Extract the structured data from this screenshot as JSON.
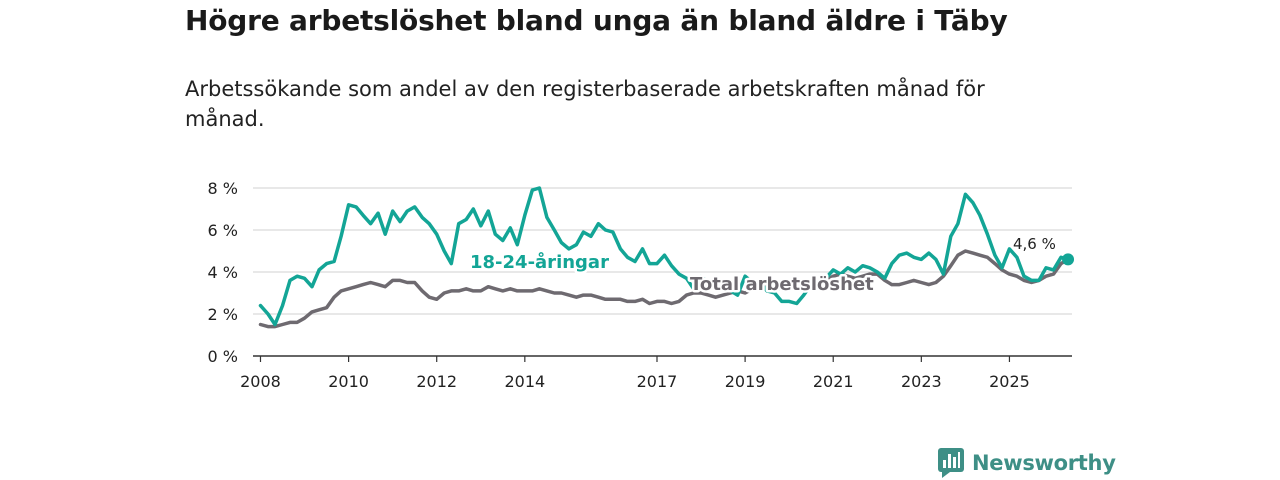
{
  "title": "Högre arbetslöshet bland unga än bland äldre i Täby",
  "subtitle": "Arbetssökande som andel av den registerbaserade arbetskraften månad för månad.",
  "brand": {
    "name": "Newsworthy",
    "icon": "newsworthy-logo-icon"
  },
  "colors": {
    "youth": "#13a596",
    "total": "#6e6a70",
    "grid": "#d9d9d9",
    "axis": "#333333"
  },
  "chart_data": {
    "type": "line",
    "title": "Högre arbetslöshet bland unga än bland äldre i Täby",
    "xlabel": "",
    "ylabel": "",
    "ylim": [
      0,
      8
    ],
    "xlim": [
      2007.83,
      2026.42
    ],
    "y_ticks": [
      {
        "value": 0,
        "label": "0 %"
      },
      {
        "value": 2,
        "label": "2 %"
      },
      {
        "value": 4,
        "label": "4 %"
      },
      {
        "value": 6,
        "label": "6 %"
      },
      {
        "value": 8,
        "label": "8 %"
      }
    ],
    "x_ticks": [
      {
        "value": 2008,
        "label": "2008"
      },
      {
        "value": 2010,
        "label": "2010"
      },
      {
        "value": 2012,
        "label": "2012"
      },
      {
        "value": 2014,
        "label": "2014"
      },
      {
        "value": 2017,
        "label": "2017"
      },
      {
        "value": 2019,
        "label": "2019"
      },
      {
        "value": 2021,
        "label": "2021"
      },
      {
        "value": 2023,
        "label": "2023"
      },
      {
        "value": 2025,
        "label": "2025"
      }
    ],
    "grid": true,
    "series": [
      {
        "name": "18-24-åringar",
        "color": "#13a596",
        "points": [
          [
            2008.0,
            2.4
          ],
          [
            2008.17,
            2.0
          ],
          [
            2008.33,
            1.5
          ],
          [
            2008.5,
            2.4
          ],
          [
            2008.67,
            3.6
          ],
          [
            2008.83,
            3.8
          ],
          [
            2009.0,
            3.7
          ],
          [
            2009.17,
            3.3
          ],
          [
            2009.33,
            4.1
          ],
          [
            2009.5,
            4.4
          ],
          [
            2009.67,
            4.5
          ],
          [
            2009.83,
            5.7
          ],
          [
            2010.0,
            7.2
          ],
          [
            2010.17,
            7.1
          ],
          [
            2010.33,
            6.7
          ],
          [
            2010.5,
            6.3
          ],
          [
            2010.67,
            6.8
          ],
          [
            2010.83,
            5.8
          ],
          [
            2011.0,
            6.9
          ],
          [
            2011.17,
            6.4
          ],
          [
            2011.33,
            6.9
          ],
          [
            2011.5,
            7.1
          ],
          [
            2011.67,
            6.6
          ],
          [
            2011.83,
            6.3
          ],
          [
            2012.0,
            5.8
          ],
          [
            2012.17,
            5.0
          ],
          [
            2012.33,
            4.4
          ],
          [
            2012.5,
            6.3
          ],
          [
            2012.67,
            6.5
          ],
          [
            2012.83,
            7.0
          ],
          [
            2013.0,
            6.2
          ],
          [
            2013.17,
            6.9
          ],
          [
            2013.33,
            5.8
          ],
          [
            2013.5,
            5.5
          ],
          [
            2013.67,
            6.1
          ],
          [
            2013.83,
            5.3
          ],
          [
            2014.0,
            6.7
          ],
          [
            2014.17,
            7.9
          ],
          [
            2014.33,
            8.0
          ],
          [
            2014.5,
            6.6
          ],
          [
            2014.67,
            6.0
          ],
          [
            2014.83,
            5.4
          ],
          [
            2015.0,
            5.1
          ],
          [
            2015.17,
            5.3
          ],
          [
            2015.33,
            5.9
          ],
          [
            2015.5,
            5.7
          ],
          [
            2015.67,
            6.3
          ],
          [
            2015.83,
            6.0
          ],
          [
            2016.0,
            5.9
          ],
          [
            2016.17,
            5.1
          ],
          [
            2016.33,
            4.7
          ],
          [
            2016.5,
            4.5
          ],
          [
            2016.67,
            5.1
          ],
          [
            2016.83,
            4.4
          ],
          [
            2017.0,
            4.4
          ],
          [
            2017.17,
            4.8
          ],
          [
            2017.33,
            4.3
          ],
          [
            2017.5,
            3.9
          ],
          [
            2017.67,
            3.7
          ],
          [
            2017.83,
            3.2
          ],
          [
            2018.0,
            3.8
          ],
          [
            2018.17,
            3.5
          ],
          [
            2018.33,
            3.4
          ],
          [
            2018.5,
            3.5
          ],
          [
            2018.67,
            3.1
          ],
          [
            2018.83,
            2.9
          ],
          [
            2019.0,
            3.8
          ],
          [
            2019.17,
            3.5
          ],
          [
            2019.33,
            3.5
          ],
          [
            2019.5,
            3.1
          ],
          [
            2019.67,
            3.0
          ],
          [
            2019.83,
            2.6
          ],
          [
            2020.0,
            2.6
          ],
          [
            2020.17,
            2.5
          ],
          [
            2020.33,
            2.9
          ],
          [
            2020.5,
            3.4
          ],
          [
            2020.67,
            3.6
          ],
          [
            2020.83,
            3.7
          ],
          [
            2021.0,
            4.1
          ],
          [
            2021.17,
            3.9
          ],
          [
            2021.33,
            4.2
          ],
          [
            2021.5,
            4.0
          ],
          [
            2021.67,
            4.3
          ],
          [
            2021.83,
            4.2
          ],
          [
            2022.0,
            4.0
          ],
          [
            2022.17,
            3.7
          ],
          [
            2022.33,
            4.4
          ],
          [
            2022.5,
            4.8
          ],
          [
            2022.67,
            4.9
          ],
          [
            2022.83,
            4.7
          ],
          [
            2023.0,
            4.6
          ],
          [
            2023.17,
            4.9
          ],
          [
            2023.33,
            4.6
          ],
          [
            2023.5,
            3.9
          ],
          [
            2023.67,
            5.7
          ],
          [
            2023.83,
            6.3
          ],
          [
            2024.0,
            7.7
          ],
          [
            2024.17,
            7.3
          ],
          [
            2024.33,
            6.7
          ],
          [
            2024.5,
            5.8
          ],
          [
            2024.67,
            4.8
          ],
          [
            2024.83,
            4.2
          ],
          [
            2025.0,
            5.1
          ],
          [
            2025.17,
            4.7
          ],
          [
            2025.33,
            3.8
          ],
          [
            2025.5,
            3.6
          ],
          [
            2025.67,
            3.6
          ],
          [
            2025.83,
            4.2
          ],
          [
            2026.0,
            4.1
          ],
          [
            2026.17,
            4.7
          ],
          [
            2026.33,
            4.6
          ]
        ]
      },
      {
        "name": "Total arbetslöshet",
        "color": "#6e6a70",
        "points": [
          [
            2008.0,
            1.5
          ],
          [
            2008.17,
            1.4
          ],
          [
            2008.33,
            1.4
          ],
          [
            2008.5,
            1.5
          ],
          [
            2008.67,
            1.6
          ],
          [
            2008.83,
            1.6
          ],
          [
            2009.0,
            1.8
          ],
          [
            2009.17,
            2.1
          ],
          [
            2009.33,
            2.2
          ],
          [
            2009.5,
            2.3
          ],
          [
            2009.67,
            2.8
          ],
          [
            2009.83,
            3.1
          ],
          [
            2010.0,
            3.2
          ],
          [
            2010.17,
            3.3
          ],
          [
            2010.33,
            3.4
          ],
          [
            2010.5,
            3.5
          ],
          [
            2010.67,
            3.4
          ],
          [
            2010.83,
            3.3
          ],
          [
            2011.0,
            3.6
          ],
          [
            2011.17,
            3.6
          ],
          [
            2011.33,
            3.5
          ],
          [
            2011.5,
            3.5
          ],
          [
            2011.67,
            3.1
          ],
          [
            2011.83,
            2.8
          ],
          [
            2012.0,
            2.7
          ],
          [
            2012.17,
            3.0
          ],
          [
            2012.33,
            3.1
          ],
          [
            2012.5,
            3.1
          ],
          [
            2012.67,
            3.2
          ],
          [
            2012.83,
            3.1
          ],
          [
            2013.0,
            3.1
          ],
          [
            2013.17,
            3.3
          ],
          [
            2013.33,
            3.2
          ],
          [
            2013.5,
            3.1
          ],
          [
            2013.67,
            3.2
          ],
          [
            2013.83,
            3.1
          ],
          [
            2014.0,
            3.1
          ],
          [
            2014.17,
            3.1
          ],
          [
            2014.33,
            3.2
          ],
          [
            2014.5,
            3.1
          ],
          [
            2014.67,
            3.0
          ],
          [
            2014.83,
            3.0
          ],
          [
            2015.0,
            2.9
          ],
          [
            2015.17,
            2.8
          ],
          [
            2015.33,
            2.9
          ],
          [
            2015.5,
            2.9
          ],
          [
            2015.67,
            2.8
          ],
          [
            2015.83,
            2.7
          ],
          [
            2016.0,
            2.7
          ],
          [
            2016.17,
            2.7
          ],
          [
            2016.33,
            2.6
          ],
          [
            2016.5,
            2.6
          ],
          [
            2016.67,
            2.7
          ],
          [
            2016.83,
            2.5
          ],
          [
            2017.0,
            2.6
          ],
          [
            2017.17,
            2.6
          ],
          [
            2017.33,
            2.5
          ],
          [
            2017.5,
            2.6
          ],
          [
            2017.67,
            2.9
          ],
          [
            2017.83,
            3.0
          ],
          [
            2018.0,
            3.0
          ],
          [
            2018.17,
            2.9
          ],
          [
            2018.33,
            2.8
          ],
          [
            2018.5,
            2.9
          ],
          [
            2018.67,
            3.0
          ],
          [
            2018.83,
            3.1
          ],
          [
            2019.0,
            3.0
          ],
          [
            2019.17,
            3.2
          ],
          [
            2019.33,
            3.2
          ],
          [
            2019.5,
            3.3
          ],
          [
            2019.67,
            3.2
          ],
          [
            2019.83,
            3.2
          ],
          [
            2020.0,
            3.3
          ],
          [
            2020.17,
            3.3
          ],
          [
            2020.33,
            3.4
          ],
          [
            2020.5,
            3.5
          ],
          [
            2020.67,
            3.6
          ],
          [
            2020.83,
            3.6
          ],
          [
            2021.0,
            3.8
          ],
          [
            2021.17,
            3.9
          ],
          [
            2021.33,
            3.8
          ],
          [
            2021.5,
            3.7
          ],
          [
            2021.67,
            3.8
          ],
          [
            2021.83,
            3.9
          ],
          [
            2022.0,
            3.9
          ],
          [
            2022.17,
            3.6
          ],
          [
            2022.33,
            3.4
          ],
          [
            2022.5,
            3.4
          ],
          [
            2022.67,
            3.5
          ],
          [
            2022.83,
            3.6
          ],
          [
            2023.0,
            3.5
          ],
          [
            2023.17,
            3.4
          ],
          [
            2023.33,
            3.5
          ],
          [
            2023.5,
            3.8
          ],
          [
            2023.67,
            4.3
          ],
          [
            2023.83,
            4.8
          ],
          [
            2024.0,
            5.0
          ],
          [
            2024.17,
            4.9
          ],
          [
            2024.33,
            4.8
          ],
          [
            2024.5,
            4.7
          ],
          [
            2024.67,
            4.4
          ],
          [
            2024.83,
            4.1
          ],
          [
            2025.0,
            3.9
          ],
          [
            2025.17,
            3.8
          ],
          [
            2025.33,
            3.6
          ],
          [
            2025.5,
            3.5
          ],
          [
            2025.67,
            3.6
          ],
          [
            2025.83,
            3.8
          ],
          [
            2026.0,
            3.9
          ],
          [
            2026.17,
            4.4
          ],
          [
            2026.33,
            4.6
          ]
        ]
      }
    ],
    "annotations": [
      {
        "text": "18-24-åringar",
        "series": "18-24-åringar"
      },
      {
        "text": "Total arbetslöshet",
        "series": "Total arbetslöshet"
      },
      {
        "text": "4,6 %",
        "series": "18-24-åringar",
        "at": "end"
      }
    ]
  }
}
